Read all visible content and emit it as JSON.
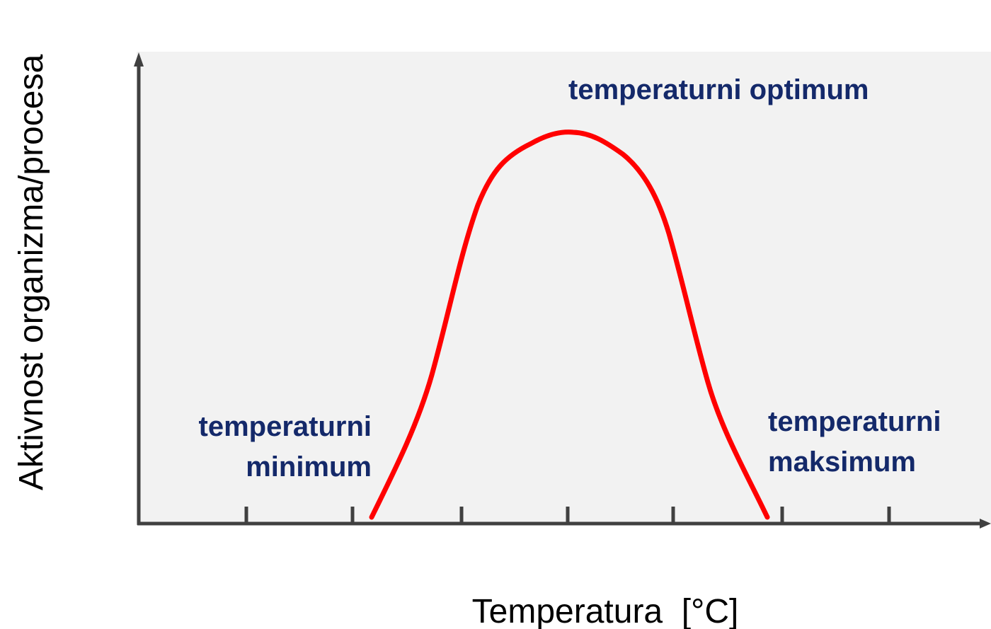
{
  "y_axis_label": "Aktivnost organizma/procesa",
  "x_axis_label": "Temperatura  [°C]",
  "annotations": {
    "optimum": "temperaturni optimum",
    "minimum": [
      "temperaturni",
      "minimum"
    ],
    "maximum": [
      "temperaturni",
      "maksimum"
    ]
  }
}
